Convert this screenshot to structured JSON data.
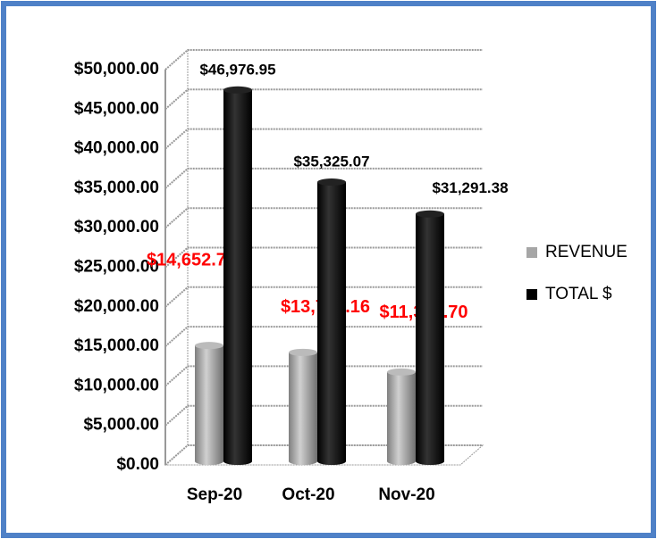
{
  "chart_data": {
    "type": "bar3d",
    "categories": [
      "Sep-20",
      "Oct-20",
      "Nov-20"
    ],
    "series": [
      {
        "name": "REVENUE",
        "color": "#a6a6a6",
        "values": [
          14652.72,
          13783.16,
          11301.7
        ],
        "value_labels": [
          "$14,652.72",
          "$13,783.16",
          "$11,301.70"
        ],
        "label_color": "#ff0000"
      },
      {
        "name": "TOTAL $",
        "color": "#000000",
        "values": [
          46976.95,
          35325.07,
          31291.38
        ],
        "value_labels": [
          "$46,976.95",
          "$35,325.07",
          "$31,291.38"
        ],
        "label_color": "#000000"
      }
    ],
    "ylim": [
      0,
      50000
    ],
    "yticks": [
      {
        "value": 0,
        "label": "$0.00"
      },
      {
        "value": 5000,
        "label": "$5,000.00"
      },
      {
        "value": 10000,
        "label": "$10,000.00"
      },
      {
        "value": 15000,
        "label": "$15,000.00"
      },
      {
        "value": 20000,
        "label": "$20,000.00"
      },
      {
        "value": 25000,
        "label": "$25,000.00"
      },
      {
        "value": 30000,
        "label": "$30,000.00"
      },
      {
        "value": 35000,
        "label": "$35,000.00"
      },
      {
        "value": 40000,
        "label": "$40,000.00"
      },
      {
        "value": 45000,
        "label": "$45,000.00"
      },
      {
        "value": 50000,
        "label": "$50,000.00"
      }
    ],
    "grid": true,
    "legend": "right"
  }
}
